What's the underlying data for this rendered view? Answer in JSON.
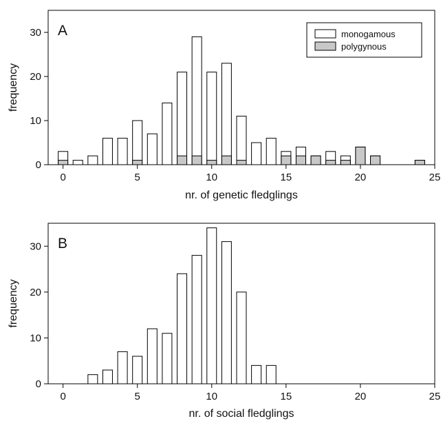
{
  "chart_data": [
    {
      "type": "bar",
      "panel_label": "A",
      "xlabel": "nr. of genetic fledglings",
      "ylabel": "frequency",
      "xlim": [
        -1,
        25
      ],
      "ylim": [
        0,
        35
      ],
      "xticks": [
        0,
        5,
        10,
        15,
        20,
        25
      ],
      "yticks": [
        0,
        10,
        20,
        30
      ],
      "legend_position": "top-right",
      "x": [
        0,
        1,
        2,
        3,
        4,
        5,
        6,
        7,
        8,
        9,
        10,
        11,
        12,
        13,
        14,
        15,
        16,
        17,
        18,
        19,
        20,
        21,
        22,
        23,
        24
      ],
      "series": [
        {
          "name": "monogamous",
          "color": "#ffffff",
          "values": [
            3,
            1,
            2,
            6,
            6,
            10,
            7,
            14,
            21,
            29,
            21,
            23,
            11,
            5,
            6,
            3,
            4,
            2,
            3,
            2,
            4,
            2,
            0,
            0,
            1
          ]
        },
        {
          "name": "polygynous",
          "color": "#c8c8c8",
          "values": [
            1,
            0,
            0,
            0,
            0,
            1,
            0,
            0,
            2,
            2,
            1,
            2,
            1,
            0,
            0,
            2,
            2,
            2,
            1,
            1,
            4,
            2,
            0,
            0,
            1
          ]
        }
      ]
    },
    {
      "type": "bar",
      "panel_label": "B",
      "xlabel": "nr. of social fledglings",
      "ylabel": "frequency",
      "xlim": [
        -1,
        25
      ],
      "ylim": [
        0,
        35
      ],
      "xticks": [
        0,
        5,
        10,
        15,
        20,
        25
      ],
      "yticks": [
        0,
        10,
        20,
        30
      ],
      "x": [
        0,
        1,
        2,
        3,
        4,
        5,
        6,
        7,
        8,
        9,
        10,
        11,
        12,
        13,
        14,
        15,
        16,
        17,
        18,
        19,
        20,
        21,
        22,
        23,
        24
      ],
      "series": [
        {
          "color": "#ffffff",
          "values": [
            0,
            0,
            2,
            3,
            7,
            6,
            12,
            11,
            24,
            28,
            34,
            31,
            20,
            4,
            4,
            0,
            0,
            0,
            0,
            0,
            0,
            0,
            0,
            0,
            0
          ]
        }
      ]
    }
  ]
}
